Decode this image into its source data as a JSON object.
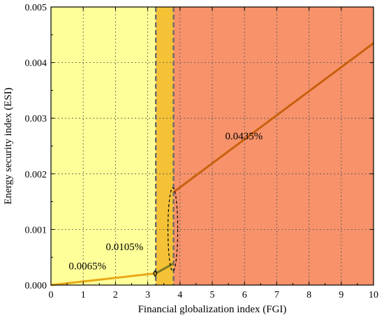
{
  "chart_data": {
    "type": "line",
    "xlabel": "Financial globalization index (FGI)",
    "ylabel": "Energy security index (ESI)",
    "xlim": [
      0,
      10
    ],
    "ylim": [
      0,
      0.005
    ],
    "x_ticks": [
      "0",
      "1",
      "2",
      "3",
      "4",
      "5",
      "6",
      "7",
      "8",
      "9",
      "10"
    ],
    "y_ticks": [
      "0.000",
      "0.001",
      "0.002",
      "0.003",
      "0.004",
      "0.005"
    ],
    "grid": true,
    "regions": [
      {
        "x_from": 0,
        "x_to": 3.25,
        "color": "#FFFF99"
      },
      {
        "x_from": 3.25,
        "x_to": 3.8,
        "color": "#F5C236"
      },
      {
        "x_from": 3.8,
        "x_to": 10,
        "color": "#F7926A"
      }
    ],
    "thresholds": [
      3.25,
      3.8
    ],
    "segments": [
      {
        "x": [
          0,
          3.25
        ],
        "y": [
          0.0,
          0.00021
        ],
        "color": "#E8A817"
      },
      {
        "x": [
          3.25,
          3.8
        ],
        "y": [
          0.00021,
          0.00039
        ],
        "color": "#7F7A1F"
      },
      {
        "x": [
          3.8,
          10
        ],
        "y": [
          0.00167,
          0.00435
        ],
        "color": "#C8600E"
      }
    ],
    "annotations": [
      {
        "text": "0.0065%",
        "x": 0.55,
        "y": 0.00028
      },
      {
        "text": "0.0105%",
        "x": 1.7,
        "y": 0.00063
      },
      {
        "text": "0.0435%",
        "x": 5.4,
        "y": 0.00262
      }
    ],
    "jump_marker": {
      "x": 3.8,
      "y_from": 0.0004,
      "y_to": 0.0017
    }
  }
}
